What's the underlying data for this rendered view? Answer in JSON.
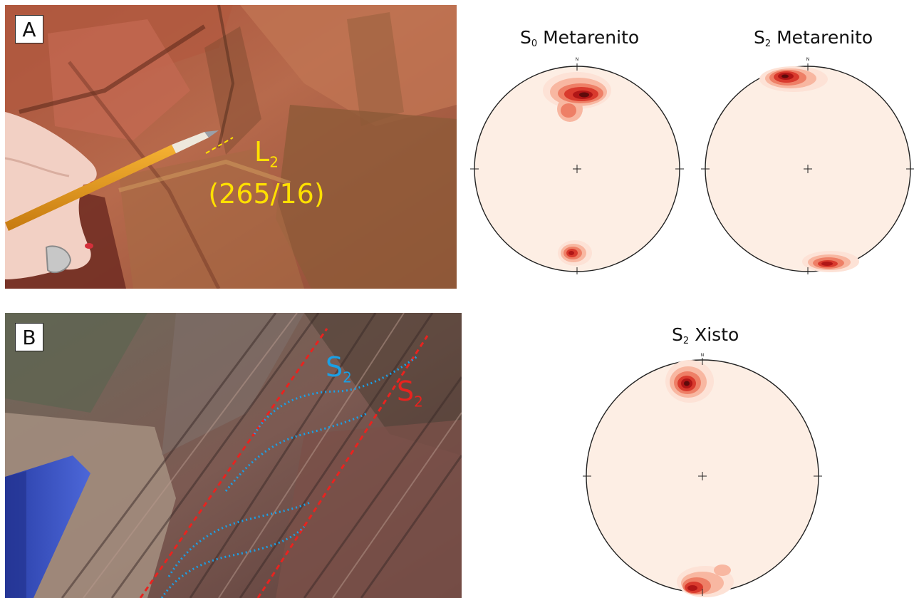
{
  "panel_a": {
    "tag": "A",
    "lineation_symbol": "L",
    "lineation_subscript": "2",
    "lineation_attitude": "(265/16)",
    "annotation_color": "#ffe000"
  },
  "panel_b": {
    "tag": "B",
    "foliation_blue_symbol": "S",
    "foliation_blue_subscript": "2",
    "foliation_red_symbol": "S",
    "foliation_red_subscript": "2",
    "blue_color": "#1aa0e6",
    "red_color": "#e8231f"
  },
  "stereonets": {
    "north_label": "N",
    "s0_metarenito": {
      "symbol": "S",
      "subscript": "0",
      "name": "Metarenito"
    },
    "s2_metarenito": {
      "symbol": "S",
      "subscript": "2",
      "name": "Metarenito"
    },
    "s2_xisto": {
      "symbol": "S",
      "subscript": "2",
      "name": "Xisto"
    },
    "density_colors": [
      "#fde2d6",
      "#f8b7a1",
      "#ee7f66",
      "#d93a2d",
      "#b01616",
      "#5e0b0b"
    ]
  }
}
